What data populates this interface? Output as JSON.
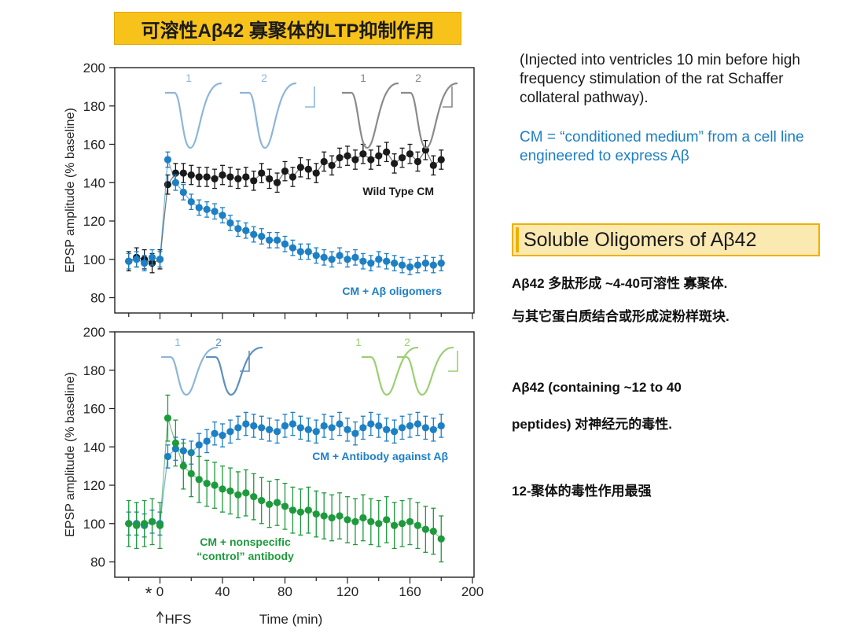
{
  "banner_title": "可溶性Aβ42 寡聚体的LTP抑制作用",
  "right_text": {
    "note1": "(Injected into ventricles 10 min before high frequency stimulation of the rat Schaffer collateral pathway).",
    "note2": "CM = “conditioned medium” from a cell line engineered to express Aβ",
    "box_title": "Soluble Oligomers of Aβ42",
    "line1": "Aβ42  多肽形成 ~4-40可溶性 寡聚体.",
    "line2": "与其它蛋白质结合或形成淀粉样斑块.",
    "line3": "Aβ42 (containing ~12 to 40",
    "line4": "peptides) 对神经元的毒性.",
    "line5": "12-聚体的毒性作用最强"
  },
  "colors": {
    "black": "#1a1a1a",
    "blue": "#1d7fc4",
    "green": "#1e9a3c",
    "banner": "#f7c21a"
  },
  "chart_data": [
    {
      "type": "scatter",
      "ylabel": "EPSP amplitude (% baseline)",
      "ylim": [
        70,
        200
      ],
      "xlim": [
        -25,
        200
      ],
      "yticks": [
        "80",
        "100",
        "120",
        "140",
        "160",
        "180",
        "200"
      ],
      "trace_labels": [
        "1",
        "2",
        "1",
        "2"
      ],
      "series": [
        {
          "name": "Wild Type CM",
          "color": "#1a1a1a",
          "x": [
            -20,
            -15,
            -10,
            -5,
            0,
            5,
            10,
            15,
            20,
            25,
            30,
            35,
            40,
            45,
            50,
            55,
            60,
            65,
            70,
            75,
            80,
            85,
            90,
            95,
            100,
            105,
            110,
            115,
            120,
            125,
            130,
            135,
            140,
            145,
            150,
            155,
            160,
            165,
            170,
            175,
            180
          ],
          "y": [
            99,
            101,
            100,
            98,
            100,
            139,
            145,
            145,
            144,
            143,
            143,
            142,
            144,
            143,
            142,
            143,
            141,
            145,
            142,
            140,
            146,
            143,
            148,
            147,
            145,
            151,
            149,
            153,
            154,
            152,
            155,
            152,
            154,
            156,
            150,
            153,
            155,
            151,
            157,
            149,
            152
          ],
          "err": 5
        },
        {
          "name": "CM + Aβ oligomers",
          "color": "#1d7fc4",
          "x": [
            -20,
            -15,
            -10,
            -5,
            0,
            5,
            10,
            15,
            20,
            25,
            30,
            35,
            40,
            45,
            50,
            55,
            60,
            65,
            70,
            75,
            80,
            85,
            90,
            95,
            100,
            105,
            110,
            115,
            120,
            125,
            130,
            135,
            140,
            145,
            150,
            155,
            160,
            165,
            170,
            175,
            180
          ],
          "y": [
            99,
            100,
            98,
            101,
            100,
            152,
            140,
            135,
            130,
            127,
            126,
            125,
            123,
            119,
            116,
            115,
            113,
            112,
            110,
            110,
            108,
            106,
            104,
            104,
            102,
            101,
            100,
            102,
            100,
            101,
            99,
            98,
            100,
            99,
            98,
            97,
            96,
            97,
            98,
            97,
            98
          ],
          "err": 4
        }
      ]
    },
    {
      "type": "scatter",
      "xlabel": "Time (min)",
      "ylabel": "EPSP amplitude (% baseline)",
      "ylim": [
        70,
        200
      ],
      "xlim": [
        -25,
        200
      ],
      "xticks": [
        "0",
        "40",
        "80",
        "120",
        "160",
        "200"
      ],
      "yticks": [
        "80",
        "100",
        "120",
        "140",
        "160",
        "180",
        "200"
      ],
      "annotations": {
        "star": "*",
        "hfs": "HFS"
      },
      "trace_labels": [
        "1",
        "2",
        "1",
        "2"
      ],
      "series": [
        {
          "name": "CM + Antibody against Aβ",
          "color": "#1d7fc4",
          "x": [
            -20,
            -15,
            -10,
            -5,
            0,
            5,
            10,
            15,
            20,
            25,
            30,
            35,
            40,
            45,
            50,
            55,
            60,
            65,
            70,
            75,
            80,
            85,
            90,
            95,
            100,
            105,
            110,
            115,
            120,
            125,
            130,
            135,
            140,
            145,
            150,
            155,
            160,
            165,
            170,
            175,
            180
          ],
          "y": [
            100,
            100,
            99,
            101,
            100,
            135,
            139,
            138,
            137,
            141,
            143,
            147,
            146,
            148,
            150,
            152,
            151,
            150,
            149,
            148,
            151,
            152,
            150,
            149,
            148,
            151,
            150,
            152,
            149,
            147,
            150,
            152,
            151,
            149,
            148,
            150,
            151,
            152,
            150,
            149,
            151
          ],
          "err": 6
        },
        {
          "name": "CM + nonspecific “control” antibody",
          "color": "#1e9a3c",
          "x": [
            -20,
            -15,
            -10,
            -5,
            0,
            5,
            10,
            15,
            20,
            25,
            30,
            35,
            40,
            45,
            50,
            55,
            60,
            65,
            70,
            75,
            80,
            85,
            90,
            95,
            100,
            105,
            110,
            115,
            120,
            125,
            130,
            135,
            140,
            145,
            150,
            155,
            160,
            165,
            170,
            175,
            180
          ],
          "y": [
            100,
            99,
            100,
            101,
            99,
            155,
            142,
            130,
            126,
            123,
            121,
            120,
            118,
            117,
            115,
            116,
            114,
            112,
            110,
            111,
            109,
            107,
            106,
            107,
            105,
            104,
            103,
            104,
            102,
            101,
            103,
            101,
            100,
            102,
            99,
            100,
            101,
            99,
            97,
            96,
            92
          ],
          "err": 12
        }
      ]
    }
  ]
}
